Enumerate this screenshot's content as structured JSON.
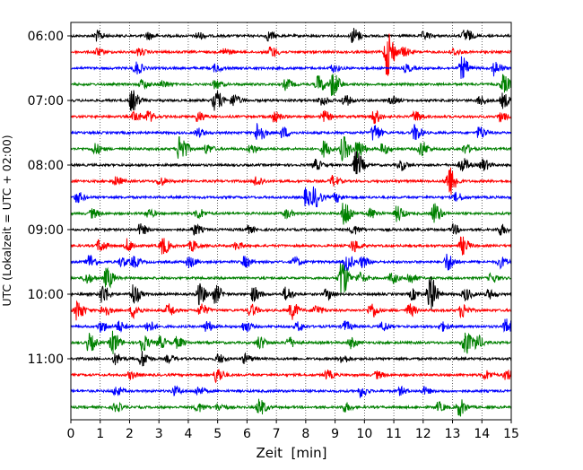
{
  "chart_data": {
    "type": "line",
    "chart_kind": "helicorder-seismogram",
    "xlabel": "Zeit  [min]",
    "ylabel": "UTC (Lokalzeit = UTC + 02:00)",
    "xlim": [
      0,
      15
    ],
    "x_ticks": [
      "0",
      "1",
      "2",
      "3",
      "4",
      "5",
      "6",
      "7",
      "8",
      "9",
      "10",
      "11",
      "12",
      "13",
      "14",
      "15"
    ],
    "y_tick_labels": [
      "06:00",
      "07:00",
      "08:00",
      "09:00",
      "10:00",
      "11:00"
    ],
    "minutes_per_line": 15,
    "line_count": 24,
    "start_time": "06:00",
    "grid": "vertical dotted lines at each minute",
    "legend": "none",
    "trace_colors": [
      "#000000",
      "#ff0000",
      "#0000ff",
      "#008000"
    ],
    "bursts": [
      [
        [
          0.85,
          6
        ],
        [
          2.6,
          4
        ],
        [
          4.3,
          4
        ],
        [
          6.7,
          5
        ],
        [
          9.6,
          9
        ],
        [
          12.0,
          4
        ],
        [
          13.4,
          8
        ]
      ],
      [
        [
          0.85,
          4
        ],
        [
          2.3,
          4
        ],
        [
          5.2,
          4
        ],
        [
          6.8,
          6
        ],
        [
          10.75,
          28
        ],
        [
          11.3,
          5
        ],
        [
          13.0,
          4
        ]
      ],
      [
        [
          2.2,
          7
        ],
        [
          4.9,
          4
        ],
        [
          8.9,
          4
        ],
        [
          11.4,
          4
        ],
        [
          13.3,
          12
        ],
        [
          14.4,
          8
        ]
      ],
      [
        [
          2.4,
          5
        ],
        [
          3.1,
          4
        ],
        [
          4.9,
          5
        ],
        [
          7.3,
          6
        ],
        [
          8.4,
          10
        ],
        [
          8.9,
          14
        ],
        [
          14.7,
          10
        ]
      ],
      [
        [
          2.05,
          12
        ],
        [
          4.9,
          12
        ],
        [
          5.5,
          7
        ],
        [
          8.5,
          6
        ],
        [
          9.3,
          6
        ],
        [
          10.9,
          4
        ],
        [
          13.9,
          5
        ],
        [
          14.7,
          8
        ]
      ],
      [
        [
          2.15,
          6
        ],
        [
          2.6,
          6
        ],
        [
          4.3,
          6
        ],
        [
          6.9,
          6
        ],
        [
          8.6,
          6
        ],
        [
          10.3,
          8
        ],
        [
          11.7,
          6
        ],
        [
          14.6,
          5
        ]
      ],
      [
        [
          4.3,
          5
        ],
        [
          6.35,
          12
        ],
        [
          7.2,
          6
        ],
        [
          10.3,
          10
        ],
        [
          11.7,
          9
        ],
        [
          13.9,
          7
        ]
      ],
      [
        [
          0.8,
          6
        ],
        [
          3.7,
          18
        ],
        [
          4.6,
          5
        ],
        [
          6.1,
          5
        ],
        [
          8.6,
          9
        ],
        [
          9.25,
          14
        ],
        [
          9.75,
          10
        ],
        [
          10.6,
          6
        ],
        [
          11.9,
          9
        ],
        [
          13.4,
          5
        ]
      ],
      [
        [
          8.3,
          6
        ],
        [
          9.7,
          15
        ],
        [
          11.2,
          6
        ],
        [
          13.3,
          8
        ],
        [
          14.0,
          7
        ]
      ],
      [
        [
          1.5,
          5
        ],
        [
          3.0,
          5
        ],
        [
          6.3,
          6
        ],
        [
          8.9,
          6
        ],
        [
          12.8,
          7
        ],
        [
          12.9,
          11
        ]
      ],
      [
        [
          0.2,
          6
        ],
        [
          8.0,
          10
        ],
        [
          8.3,
          10
        ],
        [
          9.0,
          5
        ],
        [
          13.1,
          5
        ]
      ],
      [
        [
          0.7,
          5
        ],
        [
          2.6,
          5
        ],
        [
          4.3,
          6
        ],
        [
          7.3,
          5
        ],
        [
          9.3,
          16
        ],
        [
          10.2,
          5
        ],
        [
          11.1,
          9
        ],
        [
          12.35,
          12
        ]
      ],
      [
        [
          2.35,
          6
        ],
        [
          4.2,
          6
        ],
        [
          6.0,
          4
        ],
        [
          9.6,
          5
        ],
        [
          13.0,
          5
        ],
        [
          14.6,
          6
        ]
      ],
      [
        [
          0.95,
          7
        ],
        [
          1.9,
          7
        ],
        [
          3.1,
          10
        ],
        [
          4.1,
          6
        ],
        [
          5.6,
          4
        ],
        [
          9.6,
          7
        ],
        [
          13.3,
          10
        ]
      ],
      [
        [
          0.6,
          8
        ],
        [
          1.7,
          5
        ],
        [
          2.1,
          6
        ],
        [
          4.0,
          6
        ],
        [
          5.9,
          6
        ],
        [
          7.6,
          5
        ],
        [
          9.35,
          10
        ],
        [
          9.9,
          6
        ],
        [
          12.8,
          10
        ],
        [
          14.6,
          6
        ]
      ],
      [
        [
          0.5,
          6
        ],
        [
          1.2,
          12
        ],
        [
          9.2,
          22
        ],
        [
          9.8,
          6
        ],
        [
          10.9,
          6
        ],
        [
          11.5,
          6
        ],
        [
          14.3,
          5
        ]
      ],
      [
        [
          1.05,
          11
        ],
        [
          2.1,
          12
        ],
        [
          4.35,
          12
        ],
        [
          4.9,
          10
        ],
        [
          6.2,
          8
        ],
        [
          7.3,
          8
        ],
        [
          8.7,
          6
        ],
        [
          11.6,
          6
        ],
        [
          12.2,
          22
        ],
        [
          13.4,
          7
        ],
        [
          14.2,
          5
        ]
      ],
      [
        [
          0.2,
          11
        ],
        [
          1.1,
          7
        ],
        [
          2.1,
          8
        ],
        [
          3.3,
          7
        ],
        [
          4.4,
          7
        ],
        [
          6.1,
          7
        ],
        [
          7.5,
          10
        ],
        [
          8.3,
          6
        ],
        [
          10.2,
          9
        ],
        [
          11.5,
          7
        ],
        [
          13.3,
          8
        ]
      ],
      [
        [
          1.0,
          6
        ],
        [
          1.6,
          6
        ],
        [
          2.6,
          7
        ],
        [
          4.6,
          6
        ],
        [
          5.9,
          6
        ],
        [
          7.7,
          5
        ],
        [
          9.3,
          6
        ],
        [
          10.6,
          5
        ],
        [
          12.6,
          5
        ],
        [
          14.8,
          8
        ]
      ],
      [
        [
          0.6,
          10
        ],
        [
          1.4,
          13
        ],
        [
          2.4,
          10
        ],
        [
          3.0,
          7
        ],
        [
          3.6,
          6
        ],
        [
          6.4,
          7
        ],
        [
          7.4,
          6
        ],
        [
          9.5,
          6
        ],
        [
          13.4,
          14
        ],
        [
          13.8,
          8
        ]
      ],
      [
        [
          1.5,
          6
        ],
        [
          2.4,
          9
        ],
        [
          3.3,
          4
        ],
        [
          5.0,
          5
        ],
        [
          5.9,
          5
        ],
        [
          9.2,
          5
        ]
      ],
      [
        [
          2.0,
          4
        ],
        [
          4.95,
          9
        ],
        [
          8.7,
          5
        ],
        [
          10.4,
          4
        ],
        [
          14.1,
          5
        ],
        [
          14.8,
          6
        ]
      ],
      [
        [
          1.5,
          5
        ],
        [
          3.5,
          5
        ],
        [
          4.3,
          5
        ],
        [
          9.85,
          6
        ],
        [
          11.2,
          4
        ],
        [
          12.0,
          4
        ]
      ],
      [
        [
          1.5,
          5
        ],
        [
          4.3,
          5
        ],
        [
          5.0,
          4
        ],
        [
          6.4,
          9
        ],
        [
          9.3,
          5
        ],
        [
          12.5,
          5
        ],
        [
          13.2,
          10
        ]
      ]
    ]
  }
}
